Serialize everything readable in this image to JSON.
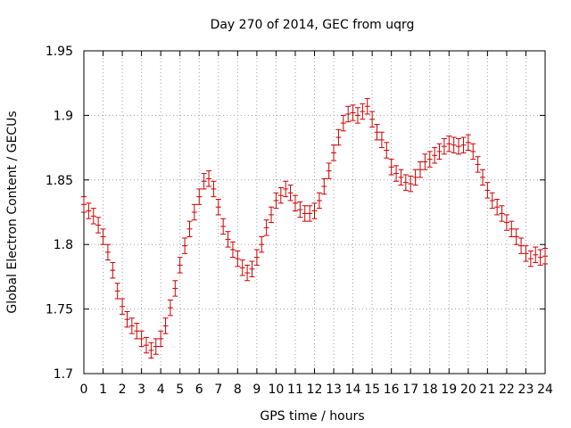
{
  "chart_data": {
    "type": "scatter",
    "title": "Day 270 of 2014, GEC from uqrg",
    "xlabel": "GPS time / hours",
    "ylabel": "Global Electron Content / GECUs",
    "xlim": [
      0,
      24
    ],
    "ylim": [
      1.7,
      1.95
    ],
    "xticks": [
      0,
      1,
      2,
      3,
      4,
      5,
      6,
      7,
      8,
      9,
      10,
      11,
      12,
      13,
      14,
      15,
      16,
      17,
      18,
      19,
      20,
      21,
      22,
      23,
      24
    ],
    "yticks": [
      1.7,
      1.75,
      1.8,
      1.85,
      1.9,
      1.95
    ],
    "ytick_labels": [
      "1.7",
      "1.75",
      "1.8",
      "1.85",
      "1.9",
      "1.95"
    ],
    "grid": true,
    "series_color": "#cc0000",
    "error_bar": 0.006,
    "x": [
      0.0,
      0.25,
      0.5,
      0.75,
      1.0,
      1.25,
      1.5,
      1.75,
      2.0,
      2.25,
      2.5,
      2.75,
      3.0,
      3.25,
      3.5,
      3.75,
      4.0,
      4.25,
      4.5,
      4.75,
      5.0,
      5.25,
      5.5,
      5.75,
      6.0,
      6.25,
      6.5,
      6.75,
      7.0,
      7.25,
      7.5,
      7.75,
      8.0,
      8.25,
      8.5,
      8.75,
      9.0,
      9.25,
      9.5,
      9.75,
      10.0,
      10.25,
      10.5,
      10.75,
      11.0,
      11.25,
      11.5,
      11.75,
      12.0,
      12.25,
      12.5,
      12.75,
      13.0,
      13.25,
      13.5,
      13.75,
      14.0,
      14.25,
      14.5,
      14.75,
      15.0,
      15.25,
      15.5,
      15.75,
      16.0,
      16.25,
      16.5,
      16.75,
      17.0,
      17.25,
      17.5,
      17.75,
      18.0,
      18.25,
      18.5,
      18.75,
      19.0,
      19.25,
      19.5,
      19.75,
      20.0,
      20.25,
      20.5,
      20.75,
      21.0,
      21.25,
      21.5,
      21.75,
      22.0,
      22.25,
      22.5,
      22.75,
      23.0,
      23.25,
      23.5,
      23.75,
      24.0
    ],
    "values": [
      1.831,
      1.826,
      1.822,
      1.815,
      1.806,
      1.794,
      1.78,
      1.764,
      1.752,
      1.742,
      1.737,
      1.733,
      1.727,
      1.722,
      1.718,
      1.721,
      1.727,
      1.737,
      1.751,
      1.766,
      1.784,
      1.799,
      1.812,
      1.825,
      1.837,
      1.849,
      1.851,
      1.843,
      1.829,
      1.814,
      1.804,
      1.796,
      1.789,
      1.782,
      1.778,
      1.781,
      1.79,
      1.8,
      1.813,
      1.823,
      1.834,
      1.838,
      1.843,
      1.84,
      1.832,
      1.827,
      1.824,
      1.824,
      1.826,
      1.834,
      1.845,
      1.857,
      1.871,
      1.883,
      1.894,
      1.901,
      1.902,
      1.9,
      1.903,
      1.907,
      1.897,
      1.887,
      1.881,
      1.873,
      1.86,
      1.855,
      1.852,
      1.848,
      1.847,
      1.852,
      1.858,
      1.864,
      1.866,
      1.869,
      1.872,
      1.876,
      1.878,
      1.877,
      1.876,
      1.877,
      1.879,
      1.872,
      1.862,
      1.852,
      1.842,
      1.834,
      1.829,
      1.824,
      1.817,
      1.812,
      1.806,
      1.799,
      1.793,
      1.789,
      1.792,
      1.79,
      1.791
    ]
  }
}
